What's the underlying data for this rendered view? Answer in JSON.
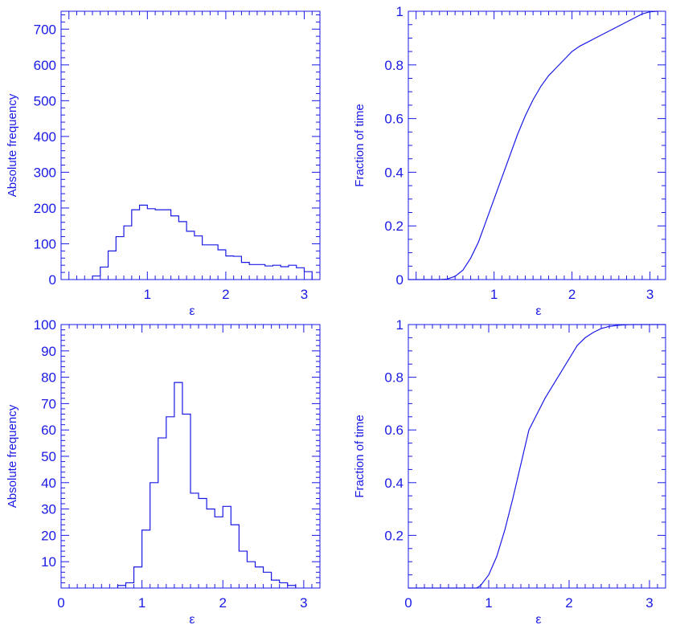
{
  "colors": {
    "ink": "#1a1ae6",
    "background": "#ffffff"
  },
  "chart_data": [
    {
      "id": "top-left",
      "type": "histogram",
      "xlabel": "ε",
      "ylabel": "Absolute frequency",
      "xlim": [
        -0.1,
        3.2
      ],
      "ylim": [
        0,
        750
      ],
      "xticks": [
        1,
        2,
        3
      ],
      "yticks": [
        0,
        100,
        200,
        300,
        400,
        500,
        600,
        700
      ],
      "bins": [
        0.3,
        0.4,
        0.5,
        0.6,
        0.7,
        0.8,
        0.9,
        1.0,
        1.1,
        1.2,
        1.3,
        1.4,
        1.5,
        1.6,
        1.7,
        1.8,
        1.9,
        2.0,
        2.1,
        2.2,
        2.3,
        2.4,
        2.5,
        2.6,
        2.7,
        2.8,
        2.9,
        3.0,
        3.1
      ],
      "values": [
        10,
        35,
        80,
        120,
        150,
        195,
        208,
        198,
        195,
        195,
        178,
        162,
        135,
        122,
        97,
        97,
        83,
        66,
        65,
        48,
        42,
        42,
        38,
        40,
        36,
        40,
        33,
        22
      ]
    },
    {
      "id": "top-right",
      "type": "line",
      "xlabel": "ε",
      "ylabel": "Fraction of time",
      "xlim": [
        -0.1,
        3.2
      ],
      "ylim": [
        0,
        1
      ],
      "xticks": [
        1,
        2,
        3
      ],
      "yticks": [
        0,
        0.2,
        0.4,
        0.6,
        0.8,
        1
      ],
      "x": [
        0.3,
        0.4,
        0.5,
        0.6,
        0.7,
        0.8,
        0.9,
        1.0,
        1.1,
        1.2,
        1.3,
        1.4,
        1.5,
        1.6,
        1.7,
        1.8,
        1.9,
        2.0,
        2.1,
        2.2,
        2.3,
        2.4,
        2.5,
        2.6,
        2.7,
        2.8,
        2.9,
        3.0,
        3.1
      ],
      "y": [
        0.0,
        0.002,
        0.012,
        0.035,
        0.08,
        0.14,
        0.22,
        0.3,
        0.38,
        0.46,
        0.54,
        0.61,
        0.67,
        0.72,
        0.76,
        0.79,
        0.82,
        0.85,
        0.87,
        0.885,
        0.9,
        0.915,
        0.93,
        0.945,
        0.96,
        0.975,
        0.99,
        0.998,
        1.0
      ]
    },
    {
      "id": "bottom-left",
      "type": "histogram",
      "xlabel": "ε",
      "ylabel": "Absolute frequency",
      "xlim": [
        0,
        3.2
      ],
      "ylim": [
        0,
        100
      ],
      "xticks": [
        0,
        1,
        2,
        3
      ],
      "yticks": [
        10,
        20,
        30,
        40,
        50,
        60,
        70,
        80,
        90,
        100
      ],
      "bins": [
        0.7,
        0.8,
        0.9,
        1.0,
        1.1,
        1.2,
        1.3,
        1.4,
        1.5,
        1.6,
        1.7,
        1.8,
        1.9,
        2.0,
        2.1,
        2.2,
        2.3,
        2.4,
        2.5,
        2.6,
        2.7,
        2.8,
        2.9
      ],
      "values": [
        1,
        2,
        8,
        22,
        40,
        57,
        65,
        78,
        66,
        36,
        34,
        30,
        27,
        31,
        24,
        14,
        10,
        8,
        6,
        3,
        2,
        1
      ]
    },
    {
      "id": "bottom-right",
      "type": "line",
      "xlabel": "ε",
      "ylabel": "Fraction of time",
      "xlim": [
        0,
        3.2
      ],
      "ylim": [
        0,
        1
      ],
      "xticks": [
        0,
        1,
        2,
        3
      ],
      "yticks": [
        0.2,
        0.4,
        0.6,
        0.8,
        1
      ],
      "x": [
        0.85,
        0.9,
        1.0,
        1.1,
        1.2,
        1.3,
        1.4,
        1.5,
        1.6,
        1.7,
        1.8,
        1.9,
        2.0,
        2.1,
        2.2,
        2.3,
        2.4,
        2.5,
        2.6,
        2.7,
        2.8,
        2.9,
        3.0,
        3.1,
        3.2
      ],
      "y": [
        0.0,
        0.01,
        0.05,
        0.12,
        0.22,
        0.34,
        0.47,
        0.6,
        0.66,
        0.72,
        0.77,
        0.82,
        0.87,
        0.92,
        0.95,
        0.97,
        0.985,
        0.993,
        0.997,
        0.999,
        1.0,
        1.0,
        1.0,
        1.0,
        1.0
      ]
    }
  ]
}
